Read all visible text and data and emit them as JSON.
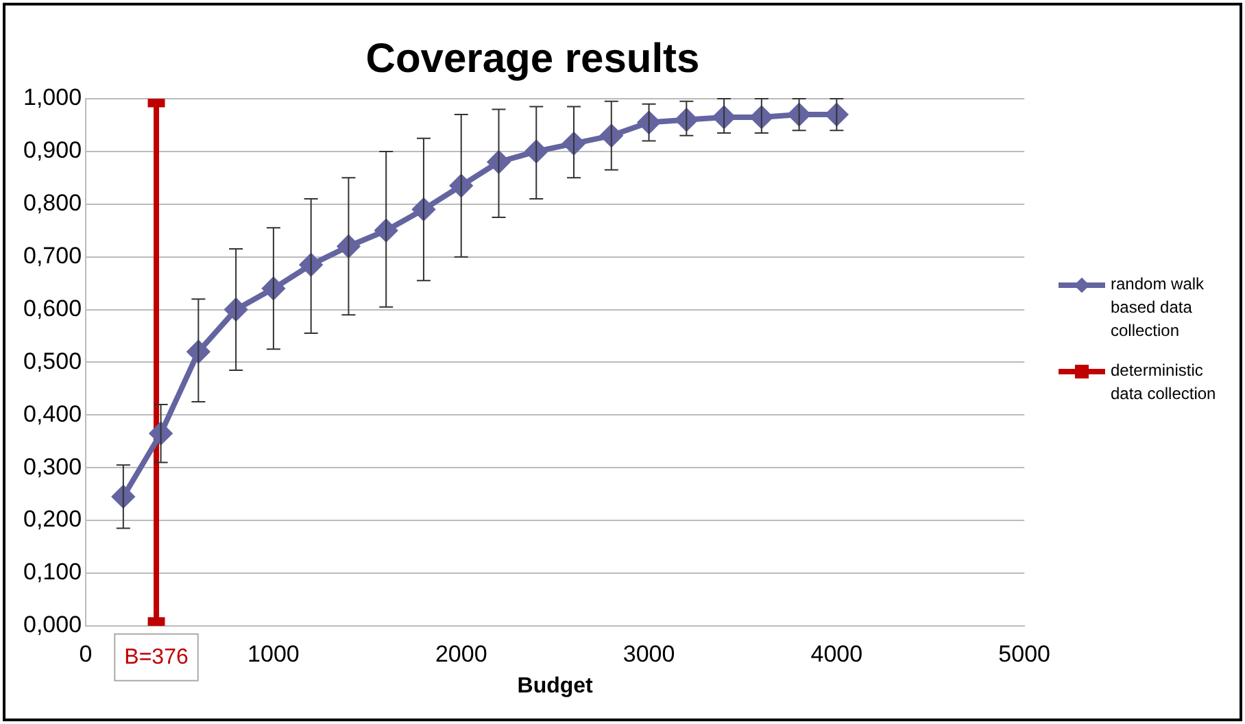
{
  "chart_data": {
    "type": "line",
    "title": "Coverage results",
    "xlabel": "Budget",
    "x": [
      200,
      400,
      600,
      800,
      1000,
      1200,
      1400,
      1600,
      1800,
      2000,
      2200,
      2400,
      2600,
      2800,
      3000,
      3200,
      3400,
      3600,
      3800,
      4000
    ],
    "series": [
      {
        "name": "random walk based data collection",
        "color": "#6464a0",
        "marker": "diamond",
        "values": [
          0.245,
          0.365,
          0.52,
          0.6,
          0.64,
          0.685,
          0.72,
          0.75,
          0.79,
          0.835,
          0.88,
          0.9,
          0.915,
          0.93,
          0.955,
          0.96,
          0.965,
          0.965,
          0.97,
          0.97
        ],
        "errors": [
          [
            0.185,
            0.305
          ],
          [
            0.31,
            0.42
          ],
          [
            0.425,
            0.62
          ],
          [
            0.485,
            0.715
          ],
          [
            0.525,
            0.755
          ],
          [
            0.555,
            0.81
          ],
          [
            0.59,
            0.85
          ],
          [
            0.605,
            0.9
          ],
          [
            0.655,
            0.925
          ],
          [
            0.7,
            0.97
          ],
          [
            0.775,
            0.98
          ],
          [
            0.81,
            0.985
          ],
          [
            0.85,
            0.985
          ],
          [
            0.865,
            0.995
          ],
          [
            0.92,
            0.99
          ],
          [
            0.93,
            0.995
          ],
          [
            0.935,
            1.0
          ],
          [
            0.935,
            1.0
          ],
          [
            0.94,
            1.0
          ],
          [
            0.94,
            1.0
          ]
        ]
      },
      {
        "name": "deterministic data collection",
        "color": "#c00000",
        "marker": "square",
        "x": [
          376,
          376
        ],
        "values": [
          0,
          1
        ]
      }
    ],
    "xlim": [
      0,
      5000
    ],
    "xticks": [
      0,
      1000,
      2000,
      3000,
      4000,
      5000
    ],
    "ylim": [
      0,
      1
    ],
    "yticks": [
      {
        "value": 0,
        "label": "0,000"
      },
      {
        "value": 0.1,
        "label": "0,100"
      },
      {
        "value": 0.2,
        "label": "0,200"
      },
      {
        "value": 0.3,
        "label": "0,300"
      },
      {
        "value": 0.4,
        "label": "0,400"
      },
      {
        "value": 0.5,
        "label": "0,500"
      },
      {
        "value": 0.6,
        "label": "0,600"
      },
      {
        "value": 0.7,
        "label": "0,700"
      },
      {
        "value": 0.8,
        "label": "0,800"
      },
      {
        "value": 0.9,
        "label": "0,900"
      },
      {
        "value": 1,
        "label": "1,000"
      }
    ],
    "grid": "y",
    "legend": "right",
    "annotations": [
      {
        "text": "B=376",
        "x": 376,
        "y": 0
      }
    ]
  }
}
